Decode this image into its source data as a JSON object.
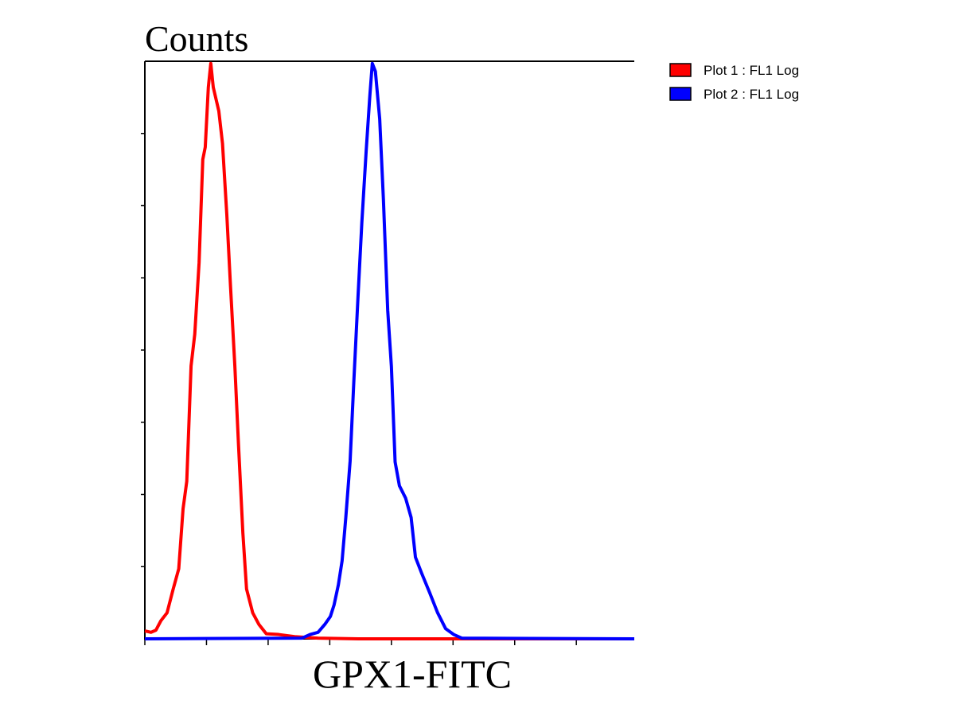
{
  "chart_data": {
    "type": "line",
    "title": "Counts",
    "x_label": "GPX1-FITC",
    "xlim": [
      0,
      7.94
    ],
    "ylim": [
      0,
      8
    ],
    "xticks": [
      0,
      1,
      2,
      3,
      4,
      5,
      6,
      7
    ],
    "yticks": [
      1,
      2,
      3,
      4,
      5,
      6,
      7
    ],
    "series": [
      {
        "name": "Plot 1 : FL1 Log",
        "color": "#ff0000",
        "x": [
          0,
          0.1,
          0.18,
          0.26,
          0.36,
          0.46,
          0.55,
          0.62,
          0.68,
          0.75,
          0.81,
          0.88,
          0.94,
          0.98,
          1.03,
          1.07,
          1.11,
          1.2,
          1.26,
          1.33,
          1.39,
          1.46,
          1.52,
          1.59,
          1.65,
          1.75,
          1.85,
          1.97,
          2.17,
          2.43,
          2.81,
          3.46,
          7.94
        ],
        "values": [
          0.11,
          0.09,
          0.12,
          0.25,
          0.36,
          0.69,
          0.97,
          1.8,
          2.18,
          3.78,
          4.22,
          5.21,
          6.64,
          6.81,
          7.64,
          7.97,
          7.64,
          7.31,
          6.86,
          5.87,
          4.88,
          3.78,
          2.68,
          1.47,
          0.69,
          0.36,
          0.2,
          0.07,
          0.06,
          0.03,
          0.01,
          0,
          0
        ]
      },
      {
        "name": "Plot 2 : FL1 Log",
        "color": "#0000ff",
        "x": [
          0,
          2.55,
          2.68,
          2.81,
          2.92,
          3.01,
          3.07,
          3.14,
          3.2,
          3.26,
          3.33,
          3.39,
          3.46,
          3.52,
          3.59,
          3.65,
          3.69,
          3.74,
          3.81,
          3.87,
          3.94,
          4.0,
          4.06,
          4.13,
          4.23,
          4.32,
          4.39,
          4.49,
          4.62,
          4.75,
          4.88,
          5.01,
          5.14,
          7.94
        ],
        "values": [
          0,
          0.01,
          0.06,
          0.09,
          0.2,
          0.31,
          0.47,
          0.75,
          1.08,
          1.68,
          2.46,
          3.56,
          4.77,
          5.76,
          6.75,
          7.52,
          7.97,
          7.86,
          7.2,
          6.09,
          4.55,
          3.77,
          2.45,
          2.12,
          1.95,
          1.68,
          1.13,
          0.91,
          0.64,
          0.36,
          0.14,
          0.06,
          0.01,
          0
        ]
      }
    ]
  }
}
